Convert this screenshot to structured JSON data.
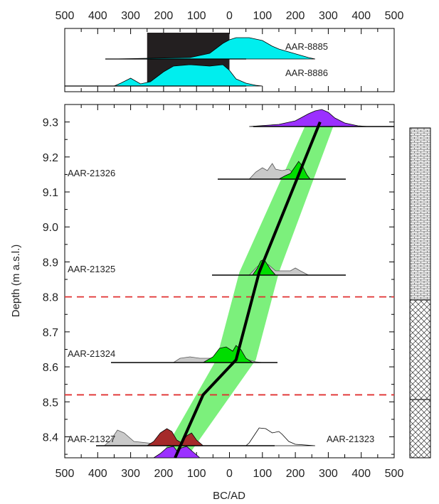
{
  "chart_data": {
    "type": "area",
    "xlabel": "BC/AD",
    "ylabel": "Depth (m a.s.l.)",
    "x_tick_labels": [
      "500",
      "400",
      "300",
      "200",
      "100",
      "0",
      "100",
      "200",
      "300",
      "400",
      "500"
    ],
    "xlim_calendar_year": [
      -500,
      500
    ],
    "ylim": [
      8.34,
      9.35
    ],
    "y_ticks": [
      8.4,
      8.5,
      8.6,
      8.7,
      8.8,
      8.9,
      9.0,
      9.1,
      9.2,
      9.3
    ],
    "top_panel": {
      "labels": [
        "AAR-8885",
        "AAR-8886"
      ],
      "shaded_range_calendar_year": [
        -250,
        0
      ],
      "colors": {
        "fill": "#00eeee",
        "shade": "#231f20"
      }
    },
    "dates": [
      {
        "label": "AAR-21326",
        "depth": 9.15,
        "calibrated_peak_year": 200
      },
      {
        "label": "AAR-21325",
        "depth": 8.87,
        "calibrated_peak_year": 95
      },
      {
        "label": "AAR-21324",
        "depth": 8.62,
        "calibrated_peak_year": 30
      },
      {
        "label": "AAR-21327",
        "depth": 8.38,
        "calibrated_peak_year": -180
      },
      {
        "label": "AAR-21323",
        "depth": 8.38,
        "calibrated_peak_year": 10
      }
    ],
    "age_depth_model": {
      "depth": [
        9.3,
        8.87,
        8.62,
        8.52,
        8.34
      ],
      "year": [
        275,
        90,
        20,
        -80,
        -165
      ]
    },
    "boundary_depths": [
      8.8,
      8.52
    ],
    "colors": {
      "envelope": "#7cf07c",
      "model": "#000000",
      "boundary": "#e03030",
      "purple": "#9b30ff",
      "green": "#00dd00",
      "grey": "#c9c9c9",
      "brown": "#a52a2a"
    }
  }
}
